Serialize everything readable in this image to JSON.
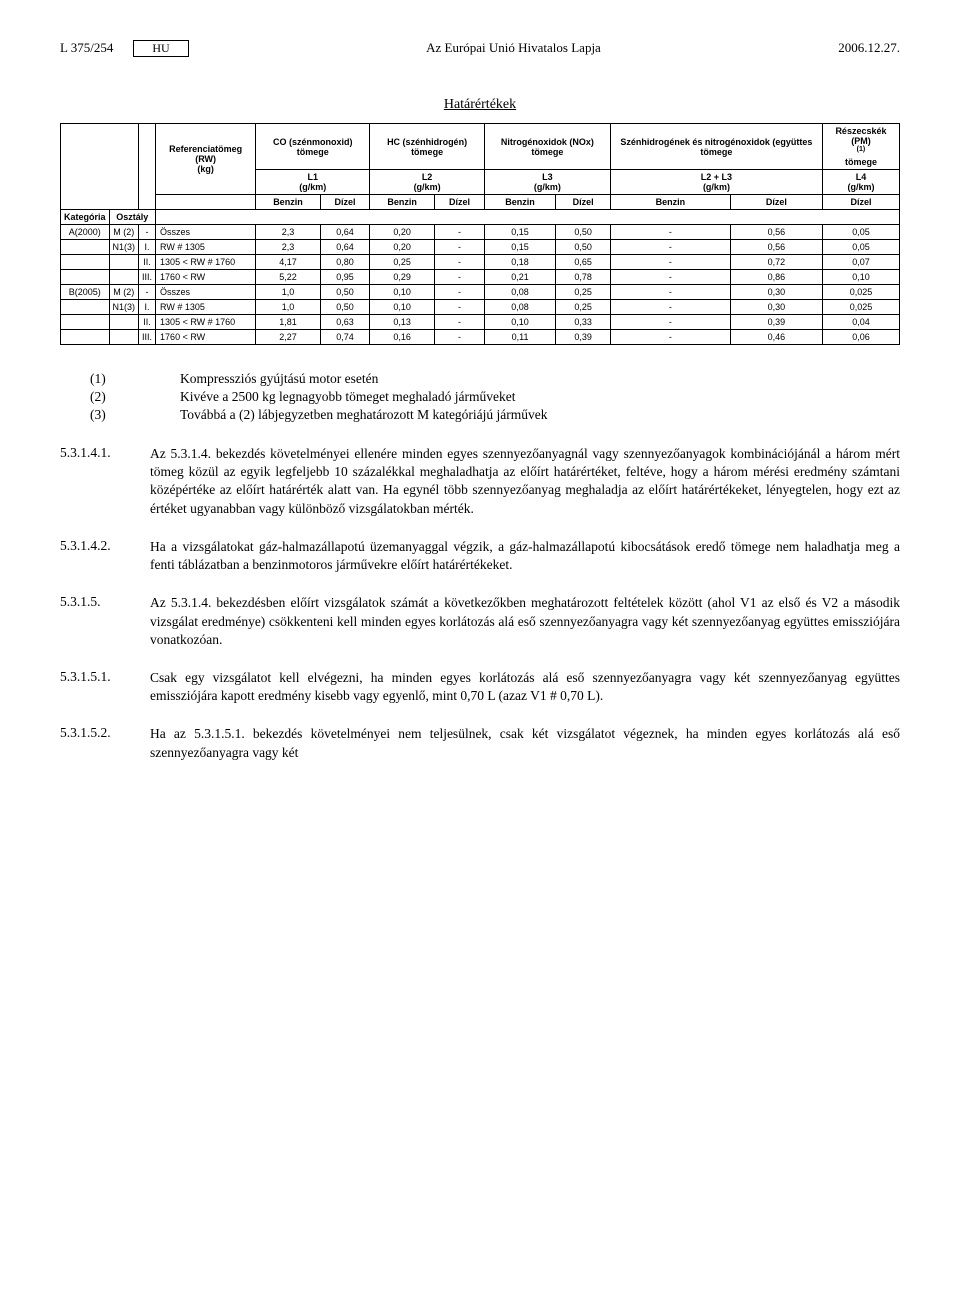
{
  "header": {
    "left_code": "L 375/254",
    "hu": "HU",
    "center": "Az Európai Unió Hivatalos Lapja",
    "date": "2006.12.27."
  },
  "table": {
    "title": "Határértékek",
    "col_headers": {
      "ref_mass": "Referenciatömeg (RW)",
      "ref_mass_unit": "(kg)",
      "co": "CO (szénmonoxid) tömege",
      "hc": "HC (szénhidrogén) tömege",
      "nox": "Nitrogénoxidok (NOx) tömege",
      "hc_nox": "Szénhidrogének és nitrogénoxidok (együttes tömege",
      "pm": "Részecskék (PM)",
      "pm_note": "(1)",
      "pm_unit": "tömege",
      "L1": "L1",
      "L2": "L2",
      "L3": "L3",
      "L23": "L2 + L3",
      "L4": "L4",
      "gkm": "(g/km)",
      "kategoria": "Kategória",
      "osztaly": "Osztály",
      "benzin": "Benzin",
      "dizel": "Dízel"
    },
    "rows": [
      {
        "kat": "A(2000)",
        "m": "M (2)",
        "cls": "-",
        "rw": "Összes",
        "v": [
          "2,3",
          "0,64",
          "0,20",
          "-",
          "0,15",
          "0,50",
          "-",
          "0,56",
          "0,05"
        ]
      },
      {
        "kat": "",
        "m": "N1(3)",
        "cls": "I.",
        "rw": "RW # 1305",
        "v": [
          "2,3",
          "0,64",
          "0,20",
          "-",
          "0,15",
          "0,50",
          "-",
          "0,56",
          "0,05"
        ]
      },
      {
        "kat": "",
        "m": "",
        "cls": "II.",
        "rw": "1305 < RW # 1760",
        "v": [
          "4,17",
          "0,80",
          "0,25",
          "-",
          "0,18",
          "0,65",
          "-",
          "0,72",
          "0,07"
        ]
      },
      {
        "kat": "",
        "m": "",
        "cls": "III.",
        "rw": "1760 < RW",
        "v": [
          "5,22",
          "0,95",
          "0,29",
          "-",
          "0,21",
          "0,78",
          "-",
          "0,86",
          "0,10"
        ]
      },
      {
        "kat": "B(2005)",
        "m": "M (2)",
        "cls": "-",
        "rw": "Összes",
        "v": [
          "1,0",
          "0,50",
          "0,10",
          "-",
          "0,08",
          "0,25",
          "-",
          "0,30",
          "0,025"
        ]
      },
      {
        "kat": "",
        "m": "N1(3)",
        "cls": "I.",
        "rw": "RW # 1305",
        "v": [
          "1,0",
          "0,50",
          "0,10",
          "-",
          "0,08",
          "0,25",
          "-",
          "0,30",
          "0,025"
        ]
      },
      {
        "kat": "",
        "m": "",
        "cls": "II.",
        "rw": "1305 < RW # 1760",
        "v": [
          "1,81",
          "0,63",
          "0,13",
          "-",
          "0,10",
          "0,33",
          "-",
          "0,39",
          "0,04"
        ]
      },
      {
        "kat": "",
        "m": "",
        "cls": "III.",
        "rw": "1760 < RW",
        "v": [
          "2,27",
          "0,74",
          "0,16",
          "-",
          "0,11",
          "0,39",
          "-",
          "0,46",
          "0,06"
        ]
      }
    ]
  },
  "notes": [
    {
      "n": "(1)",
      "t": "Kompressziós gyújtású motor esetén"
    },
    {
      "n": "(2)",
      "t": "Kivéve a 2500 kg legnagyobb tömeget meghaladó járműveket"
    },
    {
      "n": "(3)",
      "t": "Továbbá a (2) lábjegyzetben meghatározott M kategóriájú járművek"
    }
  ],
  "paragraphs": [
    {
      "n": "5.3.1.4.1.",
      "t": "Az 5.3.1.4. bekezdés követelményei ellenére minden egyes szennyezőanyagnál vagy szennyezőanyagok kombinációjánál a három mért tömeg közül az egyik legfeljebb 10 százalékkal meghaladhatja az előírt határértéket, feltéve, hogy a három mérési eredmény számtani középértéke az előírt határérték alatt van. Ha egynél több szennyezőanyag meghaladja az előírt határértékeket, lényegtelen, hogy ezt az értéket ugyanabban vagy különböző vizsgálatokban mérték."
    },
    {
      "n": "5.3.1.4.2.",
      "t": "Ha a vizsgálatokat gáz-halmazállapotú üzemanyaggal végzik, a gáz-halmazállapotú kibocsátások eredő tömege nem haladhatja meg a fenti táblázatban a benzinmotoros járművekre előírt határértékeket."
    },
    {
      "n": "5.3.1.5.",
      "t": "Az 5.3.1.4. bekezdésben előírt vizsgálatok számát a következőkben meghatározott feltételek között (ahol V1 az első és V2 a második vizsgálat eredménye) csökkenteni kell minden egyes korlátozás alá eső szennyezőanyagra vagy két szennyezőanyag együttes emissziójára vonatkozóan."
    },
    {
      "n": "5.3.1.5.1.",
      "t": "Csak egy vizsgálatot kell elvégezni, ha minden egyes korlátozás alá eső szennyezőanyagra vagy két szennyezőanyag együttes emissziójára kapott eredmény kisebb vagy egyenlő, mint 0,70 L (azaz V1 # 0,70 L)."
    },
    {
      "n": "5.3.1.5.2.",
      "t": "Ha az 5.3.1.5.1. bekezdés követelményei nem teljesülnek, csak két vizsgálatot végeznek, ha minden egyes korlátozás alá eső szennyezőanyagra vagy két"
    }
  ]
}
